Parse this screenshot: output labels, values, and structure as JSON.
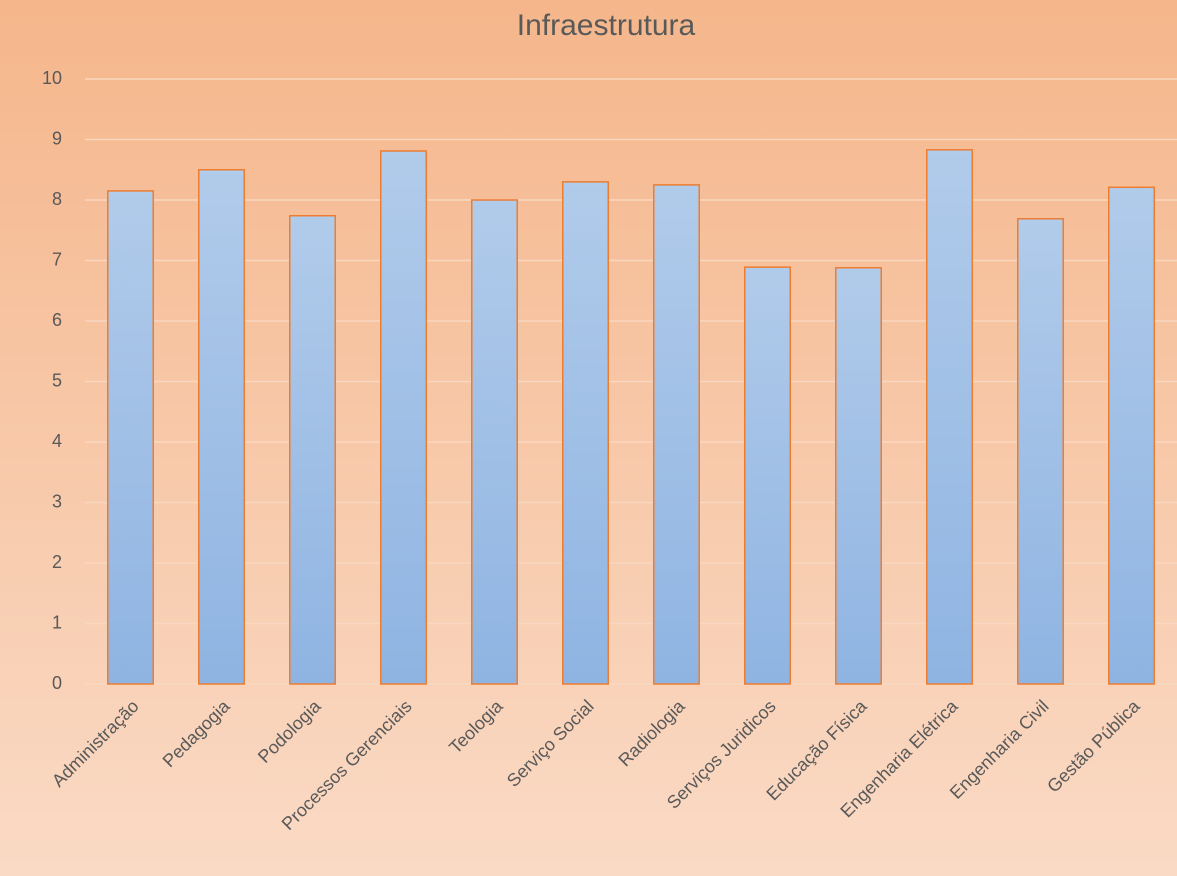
{
  "chart_data": {
    "type": "bar",
    "title": "Infraestrutura",
    "categories": [
      "Administração",
      "Pedagogia",
      "Podologia",
      "Processos Gerenciais",
      "Teologia",
      "Serviço Social",
      "Radiologia",
      "Serviços Juridicos",
      "Educação Física",
      "Engenharia Elétrica",
      "Engenharia Civil",
      "Gestão Pública"
    ],
    "values": [
      8.15,
      8.5,
      7.74,
      8.81,
      8.0,
      8.3,
      8.25,
      6.89,
      6.88,
      8.83,
      7.69,
      8.21
    ],
    "color": "#9dbde6",
    "edge_color": "#ed7d31",
    "ylim": [
      0,
      10
    ],
    "yticks": [
      0,
      1,
      2,
      3,
      4,
      5,
      6,
      7,
      8,
      9,
      10
    ],
    "grid": true
  }
}
